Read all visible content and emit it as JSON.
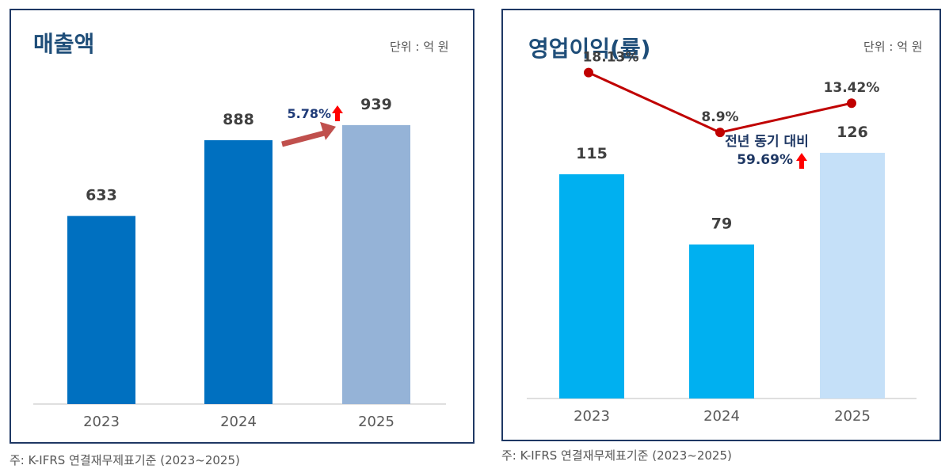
{
  "left": {
    "title": "매출액",
    "unit": "단위 : 억 원",
    "growth": "5.78%",
    "note": "주: K-IFRS 연결재무제표기준 (2023~2025)"
  },
  "right": {
    "title": "영업이익(률)",
    "unit": "단위 : 억 원",
    "yoy_label": "전년 동기 대비",
    "yoy_value": "59.69%",
    "note": "주: K-IFRS 연결재무제표기준 (2023~2025)"
  },
  "colors": {
    "frame": "#1f3864",
    "title": "#1f4e79",
    "sales_bars": [
      "#0070c0",
      "#0070c0",
      "#95b3d7"
    ],
    "profit_bars": [
      "#00b0f0",
      "#00b0f0",
      "#c5e0f8"
    ],
    "margin_line": "#c00000",
    "growth_arrow": "#c0504d",
    "up_arrow": "#ff0000"
  },
  "chart_data": [
    {
      "type": "bar",
      "title": "매출액",
      "categories": [
        "2023",
        "2024",
        "2025"
      ],
      "values": [
        633,
        888,
        939
      ],
      "value_labels": [
        "633",
        "888",
        "939"
      ],
      "ylim": [
        0,
        1200
      ],
      "grid": false,
      "annotation": "5.78%"
    },
    {
      "type": "bar+line",
      "title": "영업이익(률)",
      "categories": [
        "2023",
        "2024",
        "2025"
      ],
      "values": [
        115,
        79,
        126
      ],
      "value_labels": [
        "115",
        "79",
        "126"
      ],
      "ylim": [
        0,
        180
      ],
      "grid": false,
      "margin": {
        "values": [
          18.13,
          8.9,
          13.42
        ],
        "labels": [
          "18.13%",
          "8.9%",
          "13.42%"
        ],
        "ylim": [
          0,
          22
        ]
      },
      "annotation": [
        "전년 동기 대비",
        "59.69%"
      ]
    }
  ]
}
